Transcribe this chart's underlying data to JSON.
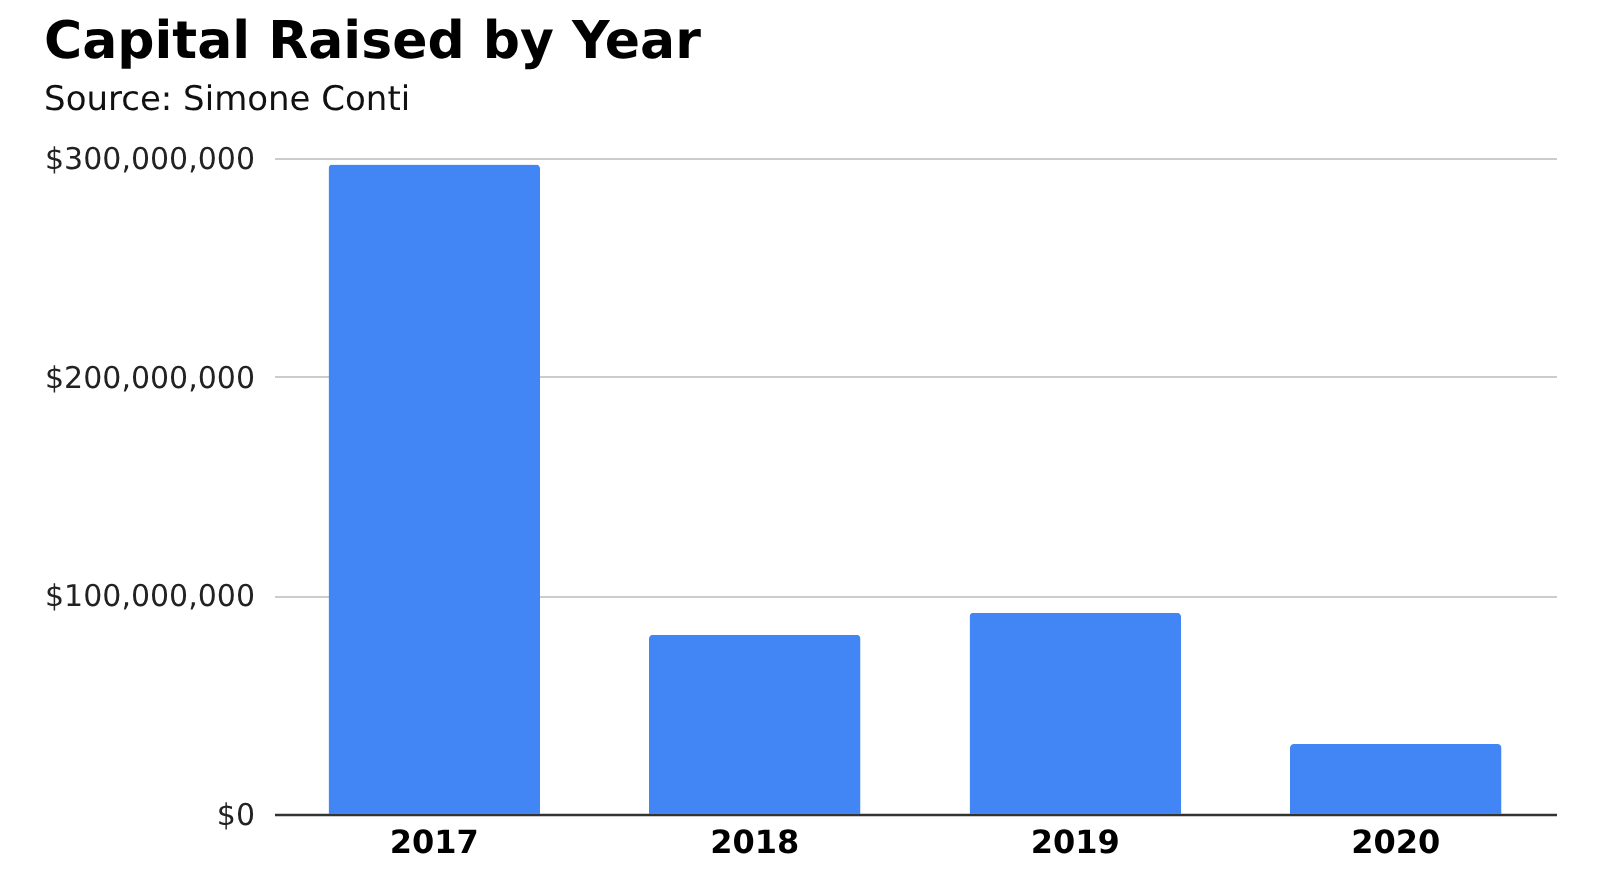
{
  "chart_data": {
    "type": "bar",
    "title": "Capital Raised by Year",
    "subtitle": "Source: Simone Conti",
    "categories": [
      "2017",
      "2018",
      "2019",
      "2020"
    ],
    "values": [
      297000000,
      82000000,
      92000000,
      32000000
    ],
    "color": "#4285f4",
    "ylim": [
      0,
      300000000
    ],
    "yticks": [
      {
        "value": 0,
        "label": "$0"
      },
      {
        "value": 100000000,
        "label": "$100,000,000"
      },
      {
        "value": 200000000,
        "label": "$200,000,000"
      },
      {
        "value": 300000000,
        "label": "$300,000,000"
      }
    ],
    "grid": "y"
  }
}
